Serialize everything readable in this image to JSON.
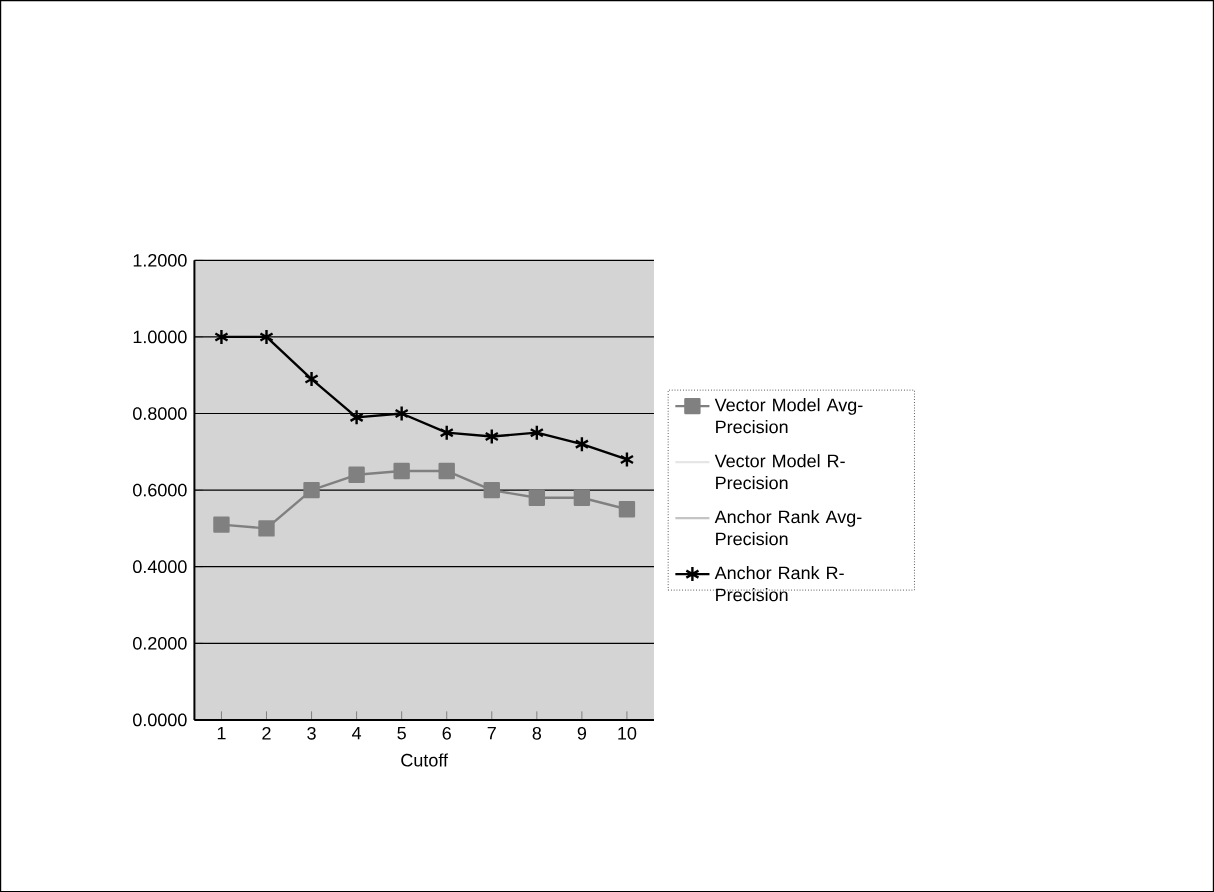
{
  "chart_data": {
    "type": "line",
    "xlabel": "Cutoff",
    "categories": [
      "1",
      "2",
      "3",
      "4",
      "5",
      "6",
      "7",
      "8",
      "9",
      "10"
    ],
    "ylim": [
      0,
      1.2
    ],
    "yticks": [
      {
        "value": 0,
        "label": "0.0000"
      },
      {
        "value": 0.2,
        "label": "0.2000"
      },
      {
        "value": 0.4,
        "label": "0.4000"
      },
      {
        "value": 0.6,
        "label": "0.6000"
      },
      {
        "value": 0.8,
        "label": "0.8000"
      },
      {
        "value": 1.0,
        "label": "1.0000"
      },
      {
        "value": 1.2,
        "label": "1.2000"
      }
    ],
    "grid": "y",
    "legend": "right",
    "series": [
      {
        "name": "Vector Model Avg-Precision",
        "color": "#808080",
        "marker": "square",
        "values": [
          0.51,
          0.5,
          0.6,
          0.64,
          0.65,
          0.65,
          0.6,
          0.58,
          0.58,
          0.55
        ]
      },
      {
        "name": "Vector Model R-Precision",
        "color": "#e6e6e6",
        "marker": "none",
        "values": [
          null,
          null,
          null,
          null,
          null,
          null,
          null,
          null,
          null,
          null
        ]
      },
      {
        "name": "Anchor Rank Avg-Precision",
        "color": "#c4c4c4",
        "marker": "none",
        "values": [
          null,
          null,
          null,
          null,
          null,
          null,
          null,
          null,
          null,
          null
        ]
      },
      {
        "name": "Anchor Rank R-Precision",
        "color": "#000000",
        "marker": "cross",
        "values": [
          1.0,
          1.0,
          0.89,
          0.79,
          0.8,
          0.75,
          0.74,
          0.75,
          0.72,
          0.68
        ]
      }
    ]
  }
}
